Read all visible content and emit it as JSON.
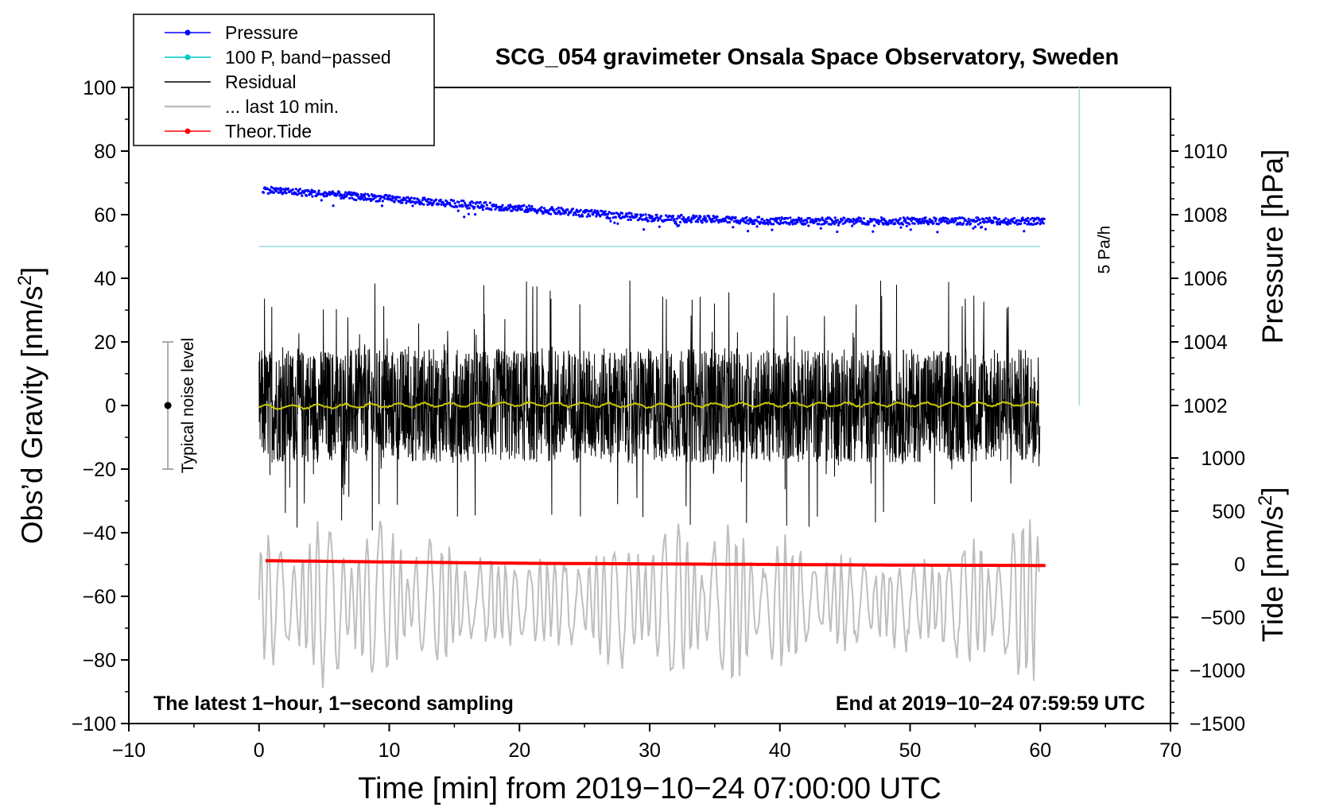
{
  "chart_data": {
    "type": "line",
    "title": "SCG_054 gravimeter Onsala Space Observatory, Sweden",
    "xlabel": "Time [min] from 2019−10−24 07:00:00 UTC",
    "ylabel": "Obs’d Gravity [nm/s",
    "ylabel_sup": "2",
    "ylabel_end": "]",
    "y2label": "Pressure [hPa]",
    "y3label": "Tide [nm/s",
    "y3label_sup": "2",
    "y3label_end": "]",
    "xlim": [
      -10,
      70
    ],
    "ylim": [
      -100,
      100
    ],
    "x_ticks": [
      -10,
      0,
      10,
      20,
      30,
      40,
      50,
      60,
      70
    ],
    "x_tick_labels": [
      "−10",
      "0",
      "10",
      "20",
      "30",
      "40",
      "50",
      "60",
      "70"
    ],
    "y_ticks": [
      -100,
      -80,
      -60,
      -40,
      -20,
      0,
      20,
      40,
      60,
      80,
      100
    ],
    "y_tick_labels": [
      "−100",
      "−80",
      "−60",
      "−40",
      "−20",
      "0",
      "20",
      "40",
      "60",
      "80",
      "100"
    ],
    "pressure_axis": {
      "ticks": [
        1002,
        1004,
        1006,
        1008,
        1010
      ],
      "tick_labels": [
        "1002",
        "1004",
        "1006",
        "1008",
        "1010"
      ],
      "ref_value": 1008,
      "ref_gravity": 60,
      "gravity_per_hpa": 10
    },
    "tide_axis": {
      "ticks": [
        -1500,
        -1000,
        -500,
        0,
        500,
        1000
      ],
      "tick_labels": [
        "−1500",
        "−1000",
        "−500",
        "0",
        "500",
        "1000"
      ],
      "gravity_per_500": 16.7
    },
    "legend": {
      "position": "top-left",
      "entries": [
        {
          "label": "Pressure",
          "color": "#0000ff",
          "marker": true
        },
        {
          "label": "100 P, band−passed",
          "color": "#00c8c8",
          "marker": true
        },
        {
          "label": "Residual",
          "color": "#000000",
          "marker": false
        },
        {
          "label": "... last 10 min.",
          "color": "#bebebe",
          "marker": false
        },
        {
          "label": "Theor.Tide",
          "color": "#ff0000",
          "marker": true
        }
      ]
    },
    "series": [
      {
        "name": "Pressure",
        "unit": "hPa",
        "x": [
          0,
          10,
          20,
          30,
          40,
          50,
          60
        ],
        "values": [
          1008.8,
          1008.5,
          1008.2,
          1007.9,
          1007.8,
          1007.8,
          1007.8
        ],
        "color": "#0000ff"
      },
      {
        "name": "100 P, band-passed",
        "unit": "gravity",
        "x": [
          0,
          60
        ],
        "values": [
          50,
          50
        ],
        "color": "#96dcdc"
      },
      {
        "name": "Residual",
        "unit": "nm/s2",
        "x_range": [
          0,
          60
        ],
        "amplitude": 18,
        "peak_range": [
          -48,
          49
        ],
        "color": "#000000"
      },
      {
        "name": "Residual smoothed",
        "unit": "nm/s2",
        "x": [
          0,
          10,
          20,
          30,
          40,
          50,
          60
        ],
        "values": [
          -0.5,
          0,
          0.5,
          0,
          0.3,
          0.3,
          0.5
        ],
        "color": "#c8c800"
      },
      {
        "name": "... last 10 min.",
        "unit": "nm/s2",
        "x_range": [
          0,
          60
        ],
        "center": -62,
        "amplitude": 25,
        "color": "#bebebe"
      },
      {
        "name": "Theor.Tide",
        "unit": "nm/s2",
        "x": [
          0.5,
          10,
          20,
          30,
          40,
          50,
          60.5
        ],
        "values": [
          -48.8,
          -49.2,
          -49.6,
          -49.8,
          -50.0,
          -50.2,
          -50.3
        ],
        "color": "#ff0000"
      }
    ],
    "rate_scale": {
      "label": "5 Pa/h",
      "x": 63,
      "y_range": [
        0,
        100
      ],
      "color": "#96dcdc"
    },
    "noise_bar": {
      "label": "Typical noise level",
      "x": -7,
      "y": 0,
      "range": [
        -20,
        20
      ]
    },
    "annotations": {
      "left": "The latest 1−hour, 1−second sampling",
      "right": "End at 2019−10−24 07:59:59 UTC"
    },
    "grid": false
  }
}
